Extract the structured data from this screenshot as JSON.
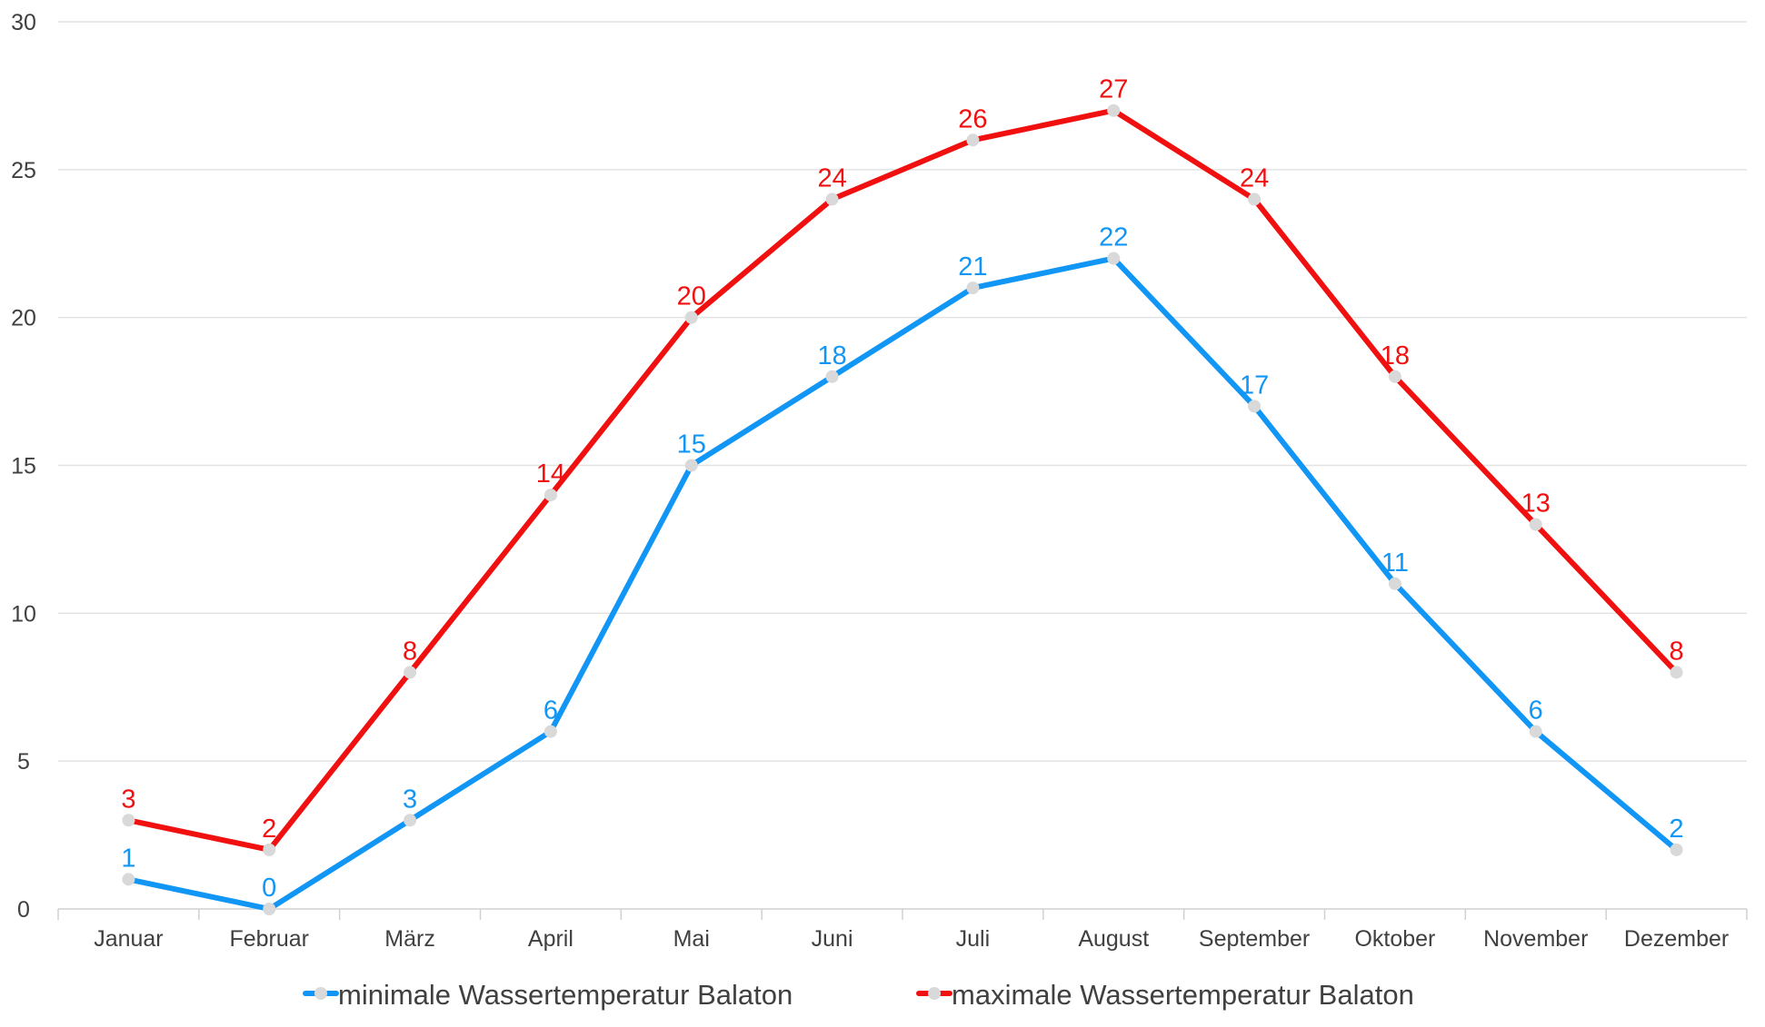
{
  "chart_data": {
    "type": "line",
    "title": "",
    "xlabel": "",
    "ylabel": "",
    "categories": [
      "Januar",
      "Februar",
      "März",
      "April",
      "Mai",
      "Juni",
      "Juli",
      "August",
      "September",
      "Oktober",
      "November",
      "Dezember"
    ],
    "ylim": [
      0,
      30
    ],
    "yticks": [
      "0",
      "5",
      "10",
      "15",
      "20",
      "25",
      "30"
    ],
    "grid": "horizontal",
    "legend_position": "bottom",
    "series": [
      {
        "name": "minimale Wassertemperatur Balaton",
        "color": "#1196f5",
        "values": [
          1,
          0,
          3,
          6,
          15,
          18,
          21,
          22,
          17,
          11,
          6,
          2
        ]
      },
      {
        "name": "maximale Wassertemperatur Balaton",
        "color": "#f01010",
        "values": [
          3,
          2,
          8,
          14,
          20,
          24,
          26,
          27,
          24,
          18,
          13,
          8
        ]
      }
    ],
    "marker_color": "#d9d9d9"
  }
}
